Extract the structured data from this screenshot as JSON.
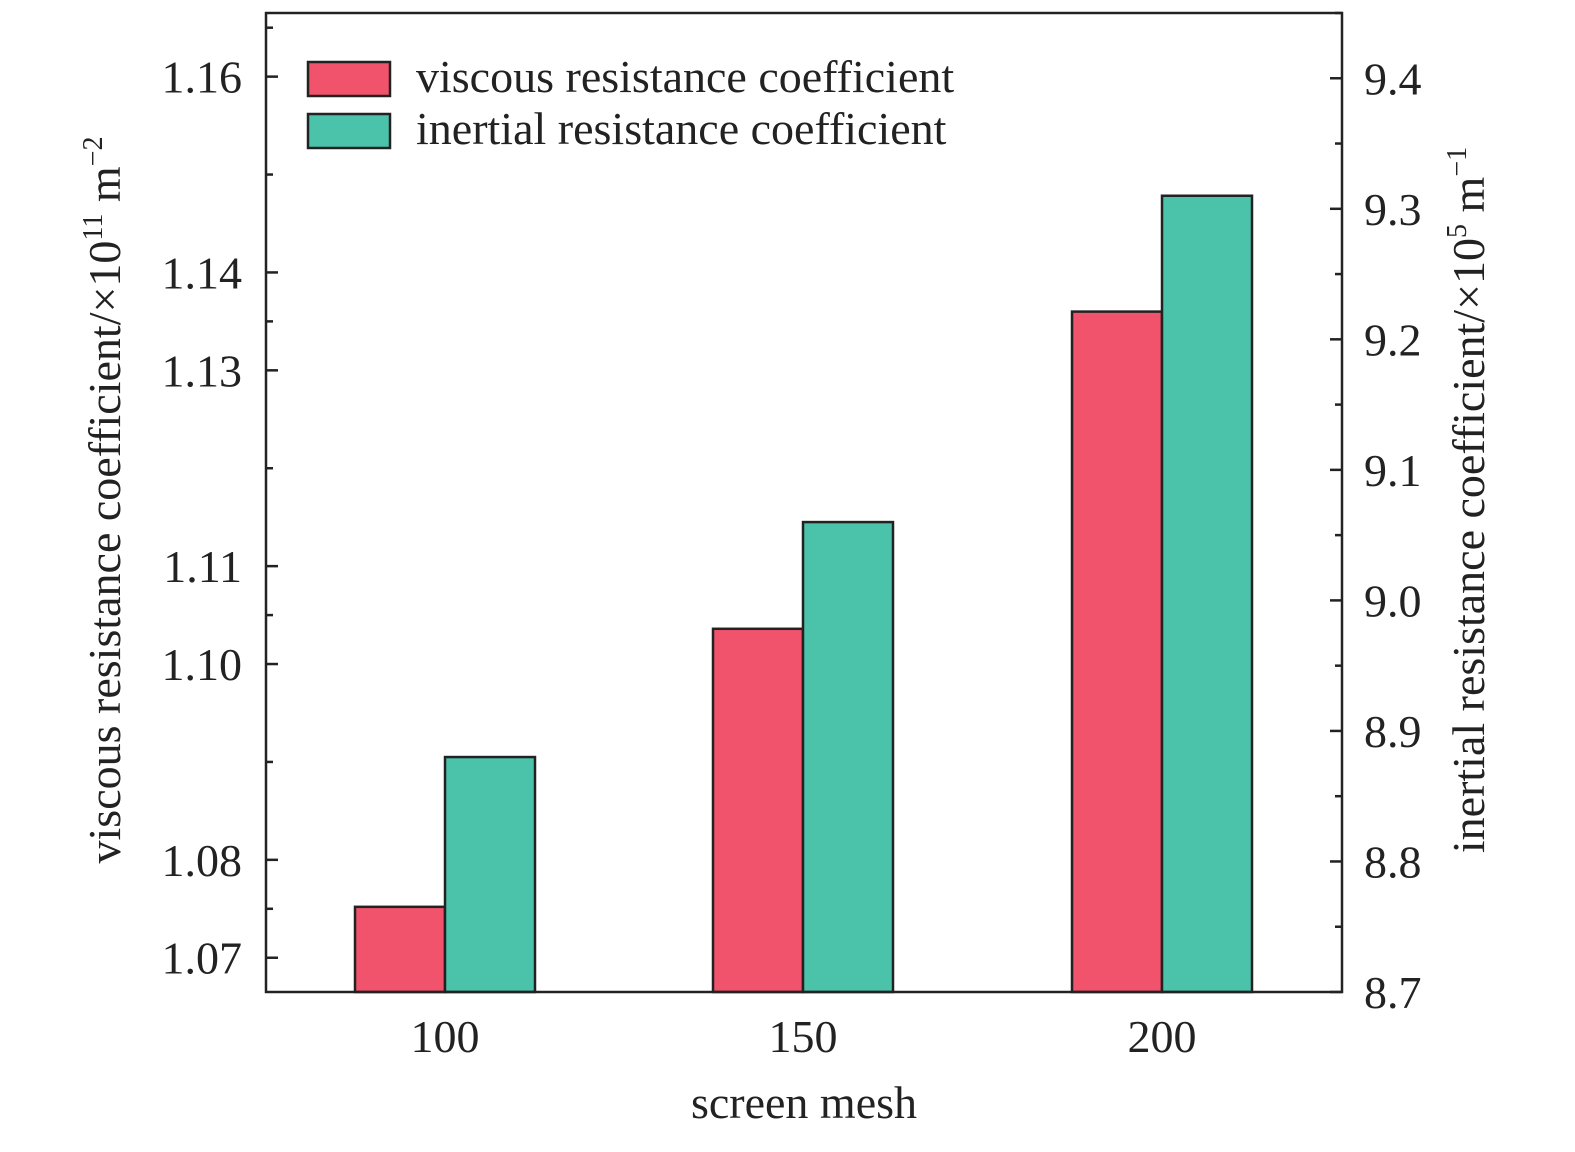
{
  "chart_data": {
    "type": "bar",
    "categories": [
      "100",
      "150",
      "200"
    ],
    "xlabel": "screen mesh",
    "series": [
      {
        "name": "viscous resistance coefficient",
        "axis": "left",
        "color": "#F0536B",
        "values": [
          1.0752,
          1.1036,
          1.136
        ]
      },
      {
        "name": "inertial resistance coefficient",
        "axis": "right",
        "color": "#4BC3AA",
        "values": [
          8.88,
          9.06,
          9.31
        ]
      }
    ],
    "left_axis": {
      "label_prefix": "viscous resistance coefficient/×10",
      "label_exp": "11",
      "label_unit": " m",
      "label_unit_exp": "−2",
      "ylim": [
        1.0665,
        1.1665
      ],
      "ticks": [
        "1.07",
        "1.08",
        "1.10",
        "1.11",
        "1.13",
        "1.14",
        "1.16"
      ],
      "tick_values": [
        1.07,
        1.08,
        1.1,
        1.11,
        1.13,
        1.14,
        1.16
      ],
      "minor_tick_values": [
        1.075,
        1.09,
        1.105,
        1.12,
        1.135,
        1.15,
        1.165
      ]
    },
    "right_axis": {
      "label_prefix": "inertial resistance coefficient/×10",
      "label_exp": "5",
      "label_unit": " m",
      "label_unit_exp": "−1",
      "ylim": [
        8.7,
        9.45
      ],
      "ticks": [
        "8.7",
        "8.8",
        "8.9",
        "9.0",
        "9.1",
        "9.2",
        "9.3",
        "9.4"
      ],
      "tick_values": [
        8.7,
        8.8,
        8.9,
        9.0,
        9.1,
        9.2,
        9.3,
        9.4
      ],
      "minor_tick_values": [
        8.75,
        8.85,
        8.95,
        9.05,
        9.15,
        9.25,
        9.35,
        9.45
      ]
    },
    "legend": {
      "position": "top-left"
    },
    "grid": false
  }
}
